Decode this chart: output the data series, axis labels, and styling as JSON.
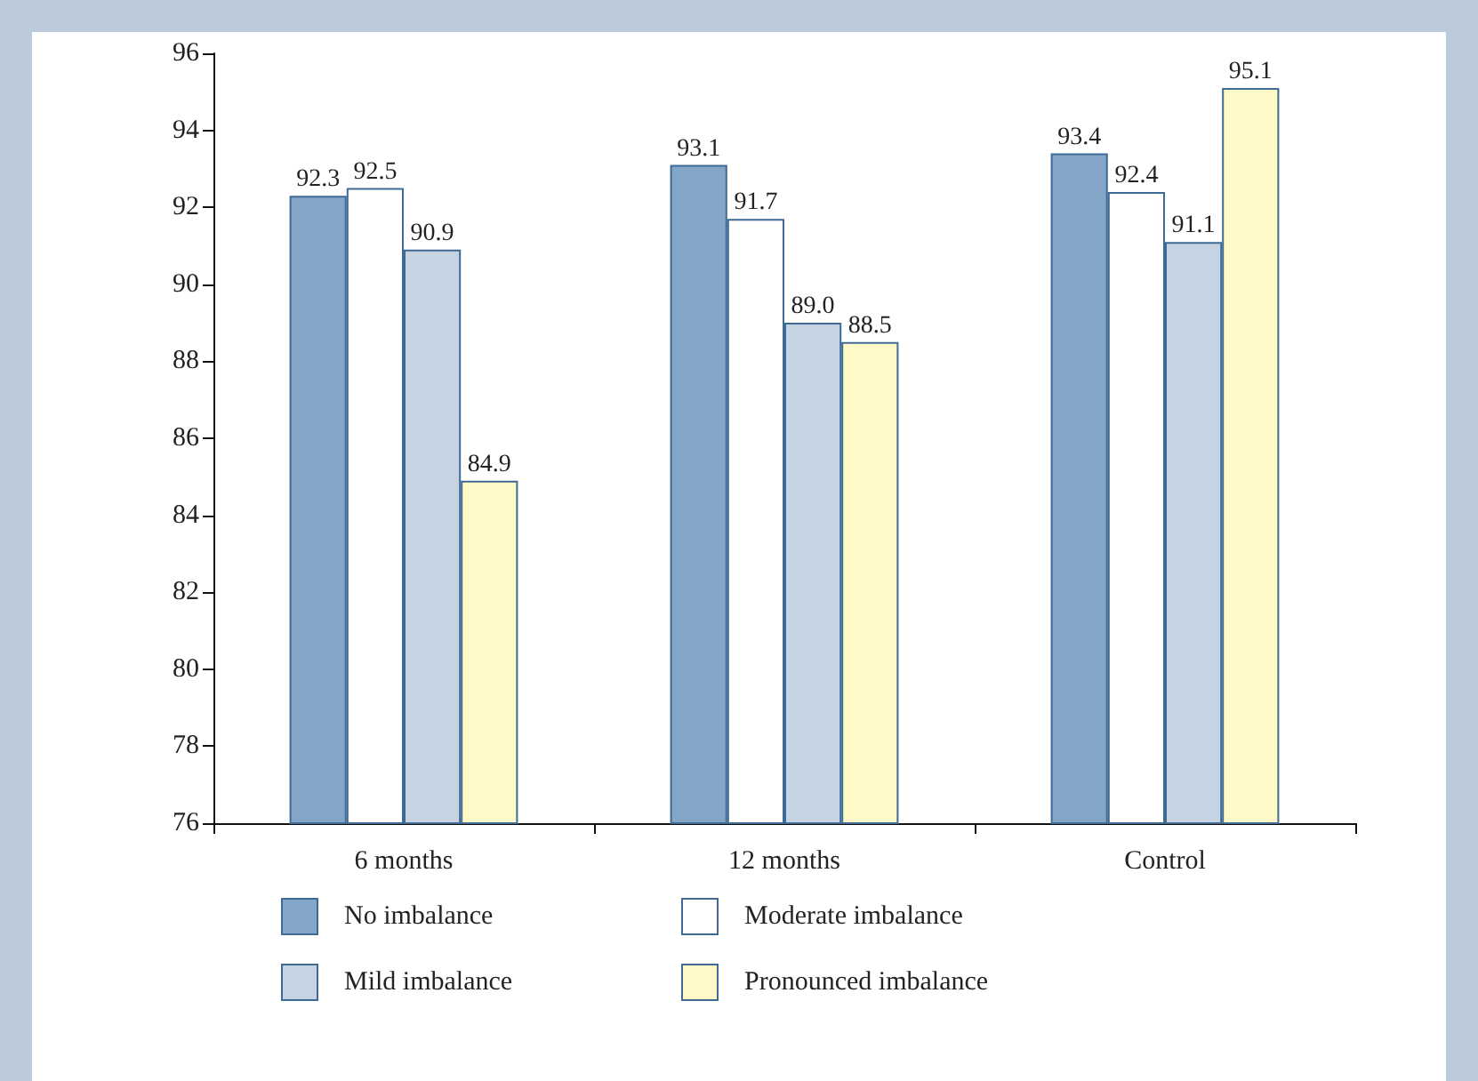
{
  "chart_data": {
    "type": "bar",
    "categories": [
      "6 months",
      "12 months",
      "Control"
    ],
    "series": [
      {
        "name": "No imbalance",
        "color": "#82a5c8",
        "values": [
          92.3,
          93.1,
          93.4
        ],
        "value_labels": [
          "92.3",
          "93.1",
          "93.4"
        ]
      },
      {
        "name": "Moderate imbalance",
        "color": "#ffffff",
        "values": [
          92.5,
          91.7,
          92.4
        ],
        "value_labels": [
          "92.5",
          "91.7",
          "92.4"
        ]
      },
      {
        "name": "Mild imbalance",
        "color": "#c5d3e3",
        "values": [
          90.9,
          89.0,
          91.1
        ],
        "value_labels": [
          "90.9",
          "89.0",
          "91.1"
        ]
      },
      {
        "name": "Pronounced imbalance",
        "color": "#fff9c8",
        "values": [
          84.9,
          88.5,
          95.1
        ],
        "value_labels": [
          "84.9",
          "88.5",
          "95.1"
        ]
      }
    ],
    "ylim": [
      76,
      96
    ],
    "yticks": [
      76,
      78,
      80,
      82,
      84,
      86,
      88,
      90,
      92,
      94,
      96
    ],
    "grid": false,
    "legend": "bottom"
  }
}
